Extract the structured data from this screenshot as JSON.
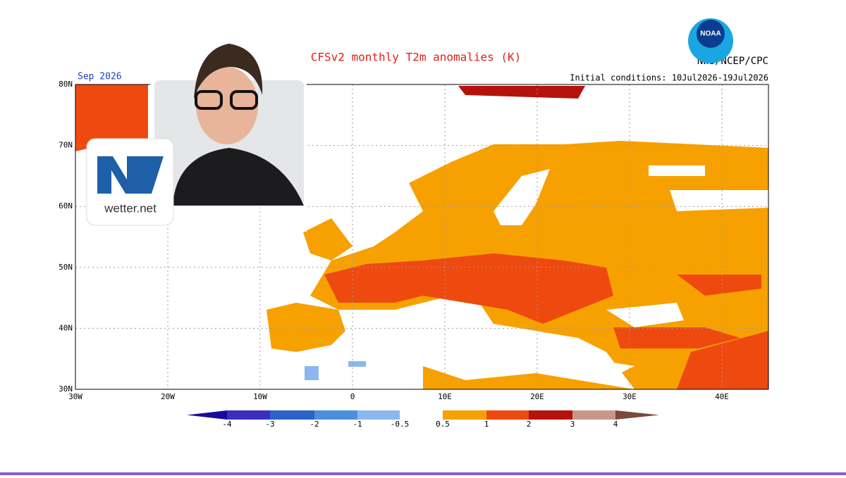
{
  "header": {
    "title": "CFSv2 monthly T2m anomalies (K)",
    "period": "Sep 2026",
    "source": "NWS/NCEP/CPC",
    "initial_conditions": "Initial conditions: 10Jul2026-19Jul2026",
    "logo": "NOAA"
  },
  "axes": {
    "lon": [
      "30W",
      "20W",
      "10W",
      "0",
      "10E",
      "20E",
      "30E",
      "40E"
    ],
    "lat": [
      "80N",
      "70N",
      "60N",
      "50N",
      "40N",
      "30N"
    ]
  },
  "legend": {
    "labels": [
      "-4",
      "-3",
      "-2",
      "-1",
      "-0.5",
      "0.5",
      "1",
      "2",
      "3",
      "4"
    ]
  },
  "badge": {
    "brand": "wetter.net"
  }
}
